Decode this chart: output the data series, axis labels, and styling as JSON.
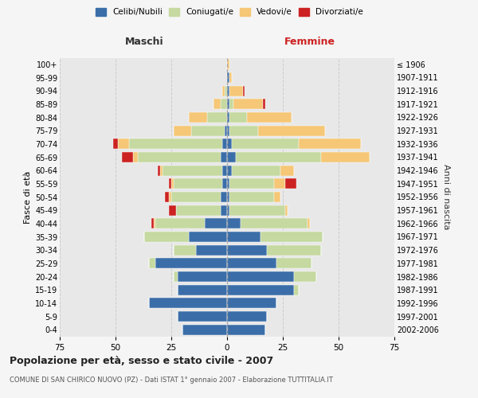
{
  "age_groups": [
    "0-4",
    "5-9",
    "10-14",
    "15-19",
    "20-24",
    "25-29",
    "30-34",
    "35-39",
    "40-44",
    "45-49",
    "50-54",
    "55-59",
    "60-64",
    "65-69",
    "70-74",
    "75-79",
    "80-84",
    "85-89",
    "90-94",
    "95-99",
    "100+"
  ],
  "birth_years": [
    "2002-2006",
    "1997-2001",
    "1992-1996",
    "1987-1991",
    "1982-1986",
    "1977-1981",
    "1972-1976",
    "1967-1971",
    "1962-1966",
    "1957-1961",
    "1952-1956",
    "1947-1951",
    "1942-1946",
    "1937-1941",
    "1932-1936",
    "1927-1931",
    "1922-1926",
    "1917-1921",
    "1912-1916",
    "1907-1911",
    "≤ 1906"
  ],
  "males": {
    "celibi": [
      20,
      22,
      35,
      22,
      22,
      32,
      14,
      17,
      10,
      3,
      3,
      2,
      2,
      3,
      2,
      1,
      0,
      0,
      0,
      0,
      0
    ],
    "coniugati": [
      0,
      0,
      0,
      0,
      2,
      3,
      10,
      20,
      22,
      20,
      22,
      22,
      27,
      37,
      42,
      15,
      9,
      3,
      1,
      0,
      0
    ],
    "vedovi": [
      0,
      0,
      0,
      0,
      0,
      0,
      0,
      0,
      1,
      0,
      1,
      1,
      1,
      2,
      5,
      8,
      8,
      3,
      1,
      0,
      0
    ],
    "divorziati": [
      0,
      0,
      0,
      0,
      0,
      0,
      0,
      0,
      1,
      3,
      2,
      1,
      1,
      5,
      2,
      0,
      0,
      0,
      0,
      0,
      0
    ]
  },
  "females": {
    "nubili": [
      17,
      18,
      22,
      30,
      30,
      22,
      18,
      15,
      6,
      1,
      1,
      1,
      2,
      4,
      2,
      1,
      1,
      1,
      1,
      1,
      0
    ],
    "coniugate": [
      0,
      0,
      0,
      2,
      10,
      16,
      24,
      28,
      30,
      25,
      20,
      20,
      22,
      38,
      30,
      13,
      8,
      2,
      0,
      0,
      0
    ],
    "vedove": [
      0,
      0,
      0,
      0,
      0,
      0,
      0,
      0,
      1,
      1,
      3,
      5,
      6,
      22,
      28,
      30,
      20,
      13,
      6,
      1,
      1
    ],
    "divorziate": [
      0,
      0,
      0,
      0,
      0,
      0,
      0,
      0,
      0,
      0,
      0,
      5,
      0,
      0,
      0,
      0,
      0,
      1,
      1,
      0,
      0
    ]
  },
  "colors": {
    "celibi": "#3b6ea8",
    "coniugati": "#c5d9a0",
    "vedovi": "#f5c776",
    "divorziati": "#cc2222"
  },
  "title": "Popolazione per età, sesso e stato civile - 2007",
  "subtitle": "COMUNE DI SAN CHIRICO NUOVO (PZ) - Dati ISTAT 1° gennaio 2007 - Elaborazione TUTTITALIA.IT",
  "xlabel_left": "Maschi",
  "xlabel_right": "Femmine",
  "ylabel_left": "Fasce di età",
  "ylabel_right": "Anni di nascita",
  "xlim": 75,
  "bg_color": "#f5f5f5",
  "plot_bg": "#e8e8e8"
}
